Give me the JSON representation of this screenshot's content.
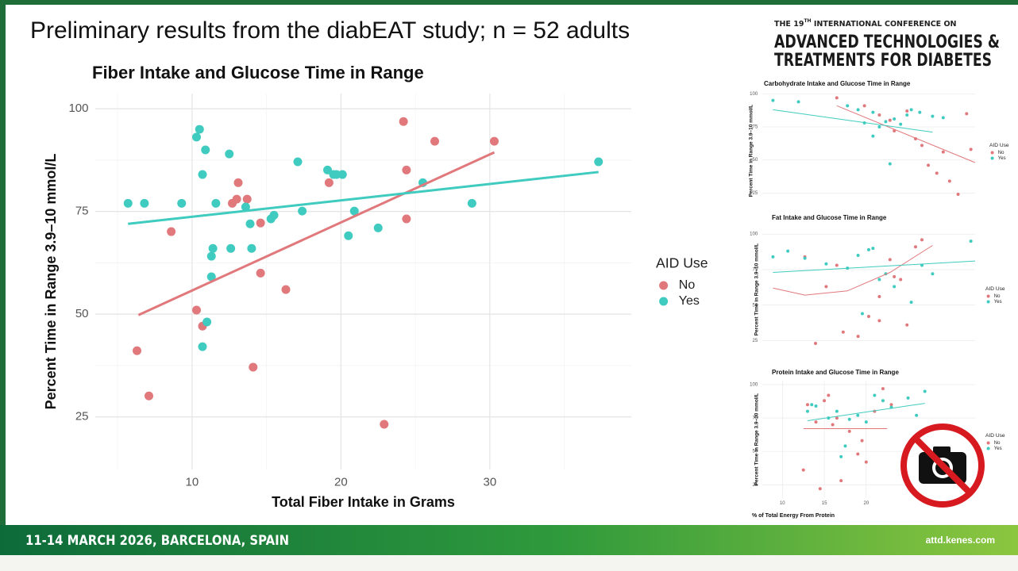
{
  "slide_title": "Preliminary results from the diabEAT study; n = 52 adults",
  "conference": {
    "pre": "THE 19",
    "sup": "TH",
    "post": " INTERNATIONAL CONFERENCE ON",
    "name_line1": "ADVANCED TECHNOLOGIES &",
    "name_line2": "TREATMENTS FOR DIABETES"
  },
  "footer": {
    "dates": "11-14 MARCH 2026, BARCELONA, SPAIN",
    "url": "attd.kenes.com"
  },
  "chart_data": [
    {
      "type": "scatter",
      "title": "Fiber Intake and Glucose Time in Range",
      "x_label": "Total Fiber Intake in Grams",
      "y_label": "Percent Time in Range 3.9–10 mmol/L",
      "xlim": [
        3.5,
        39.5
      ],
      "ylim": [
        12.2,
        103.7
      ],
      "xticks": [
        10,
        20,
        30
      ],
      "yticks": [
        25,
        50,
        75,
        100
      ],
      "xminor": [
        5,
        15,
        25,
        35
      ],
      "yminor": [
        37.5,
        62.5,
        87.5
      ],
      "grid": true,
      "legend_title": "AID Use",
      "series": [
        {
          "name": "No",
          "color": "#e0787c",
          "x": [
            6.3,
            7.1,
            8.6,
            10.3,
            10.7,
            12.7,
            13.0,
            13.1,
            13.7,
            14.1,
            14.6,
            14.6,
            16.3,
            19.2,
            22.9,
            24.2,
            24.4,
            24.4,
            26.3,
            30.3
          ],
          "y": [
            41.1,
            30.1,
            70.1,
            51.0,
            47.1,
            77.0,
            78.0,
            82.0,
            78.0,
            37.1,
            72.2,
            60.0,
            56.0,
            82.0,
            23.2,
            96.9,
            85.1,
            73.2,
            92.1,
            92.1
          ],
          "trend": {
            "x": [
              6.4,
              30.3
            ],
            "y": [
              49.8,
              89.4
            ]
          }
        },
        {
          "name": "Yes",
          "color": "#3fcbbf",
          "x": [
            5.7,
            6.8,
            9.3,
            10.3,
            10.5,
            10.7,
            10.9,
            11.3,
            11.4,
            11.3,
            11.6,
            11.0,
            10.7,
            12.5,
            12.6,
            13.6,
            13.9,
            14.0,
            15.3,
            15.5,
            17.1,
            17.4,
            19.1,
            19.5,
            19.7,
            20.1,
            20.5,
            20.9,
            22.5,
            25.5,
            28.8,
            37.3
          ],
          "y": [
            77.0,
            77.0,
            77.0,
            93.1,
            95.0,
            84.0,
            90.0,
            64.1,
            66.0,
            59.1,
            77.0,
            48.1,
            42.1,
            89.0,
            66.0,
            76.1,
            72.0,
            66.0,
            73.2,
            74.1,
            87.1,
            75.1,
            85.1,
            84.0,
            84.0,
            84.0,
            69.1,
            75.1,
            71.0,
            82.0,
            77.0,
            87.1
          ],
          "trend": {
            "x": [
              5.7,
              37.3
            ],
            "y": [
              72.0,
              84.6
            ]
          }
        }
      ]
    },
    {
      "type": "scatter",
      "title": "Carbohydrate Intake and Glucose Time in Range",
      "y_label": "Percent Time in Range 3.9–10 mmol/L",
      "xlim": [
        0,
        100
      ],
      "ylim": [
        12,
        102
      ],
      "yticks": [
        25,
        50,
        75,
        100
      ],
      "grid": true,
      "legend_title": "AID Use",
      "series": [
        {
          "name": "No",
          "color": "#e0787c",
          "x": [
            35,
            48,
            55,
            60,
            62,
            68,
            72,
            75,
            78,
            82,
            85,
            88,
            92,
            96,
            98
          ],
          "y": [
            97,
            91,
            84,
            80,
            72,
            87,
            66,
            61,
            46,
            40,
            56,
            34,
            24,
            85,
            58
          ],
          "trend": {
            "x": [
              35,
              100
            ],
            "y": [
              91,
              48
            ]
          }
        },
        {
          "name": "Yes",
          "color": "#3fcbbf",
          "x": [
            5,
            17,
            40,
            45,
            48,
            52,
            55,
            58,
            62,
            65,
            68,
            70,
            74,
            80,
            85,
            52,
            60
          ],
          "y": [
            95,
            94,
            91,
            88,
            78,
            86,
            75,
            79,
            81,
            77,
            84,
            88,
            86,
            83,
            82,
            68,
            47
          ],
          "trend": {
            "x": [
              5,
              80
            ],
            "y": [
              88,
              71
            ]
          }
        }
      ]
    },
    {
      "type": "scatter",
      "title": "Fat Intake and Glucose Time in Range",
      "y_label": "Percent Time in Range 3.9–10 mmol/L",
      "xlim": [
        0,
        100
      ],
      "ylim": [
        18,
        104
      ],
      "yticks": [
        25,
        50,
        75,
        100
      ],
      "grid": true,
      "legend_title": "AID Use",
      "series": [
        {
          "name": "No",
          "color": "#e0787c",
          "x": [
            20,
            30,
            35,
            45,
            50,
            55,
            60,
            62,
            65,
            68,
            72,
            75,
            55,
            25,
            38
          ],
          "y": [
            84,
            63,
            78,
            28,
            42,
            39,
            82,
            70,
            68,
            36,
            91,
            96,
            56,
            23,
            31
          ],
          "trend": {
            "x": [
              5,
              20,
              40,
              60,
              80
            ],
            "y": [
              62,
              57,
              60,
              73,
              92
            ]
          }
        },
        {
          "name": "Yes",
          "color": "#3fcbbf",
          "x": [
            5,
            12,
            20,
            30,
            40,
            45,
            50,
            52,
            55,
            58,
            62,
            70,
            75,
            80,
            98,
            47
          ],
          "y": [
            84,
            88,
            83,
            79,
            76,
            85,
            89,
            90,
            68,
            72,
            63,
            52,
            78,
            72,
            95,
            44
          ],
          "trend": {
            "x": [
              5,
              100
            ],
            "y": [
              73,
              81
            ]
          }
        }
      ]
    },
    {
      "type": "scatter",
      "title": "Protein Intake and Glucose Time in Range",
      "x_label": "% of Total Energy From Protein",
      "y_label": "Percent Time in Range 3.9–10 mmol/L",
      "xlim": [
        7.6,
        33
      ],
      "ylim": [
        15,
        103
      ],
      "xticks": [
        10,
        15,
        20
      ],
      "yticks": [
        25,
        50,
        75,
        100
      ],
      "grid": true,
      "legend_title": "AID Use",
      "series": [
        {
          "name": "No",
          "color": "#e0787c",
          "x": [
            12.5,
            13,
            14,
            15,
            15.5,
            16,
            16.5,
            17,
            18,
            19,
            19.5,
            20,
            21,
            22,
            23,
            14.5
          ],
          "y": [
            36,
            85,
            72,
            88,
            92,
            70,
            75,
            28,
            65,
            48,
            58,
            42,
            80,
            97,
            85,
            22
          ],
          "trend": {
            "x": [
              12.5,
              22.5
            ],
            "y": [
              67,
              67
            ]
          }
        },
        {
          "name": "Yes",
          "color": "#3fcbbf",
          "x": [
            13,
            13.5,
            14,
            15.5,
            16.5,
            17,
            17.5,
            18,
            19,
            20,
            21,
            22,
            23,
            25,
            27,
            26
          ],
          "y": [
            80,
            85,
            84,
            75,
            80,
            46,
            54,
            74,
            77,
            72,
            92,
            88,
            83,
            90,
            95,
            77
          ],
          "trend": {
            "x": [
              13,
              27
            ],
            "y": [
              73,
              86
            ]
          }
        }
      ]
    }
  ]
}
